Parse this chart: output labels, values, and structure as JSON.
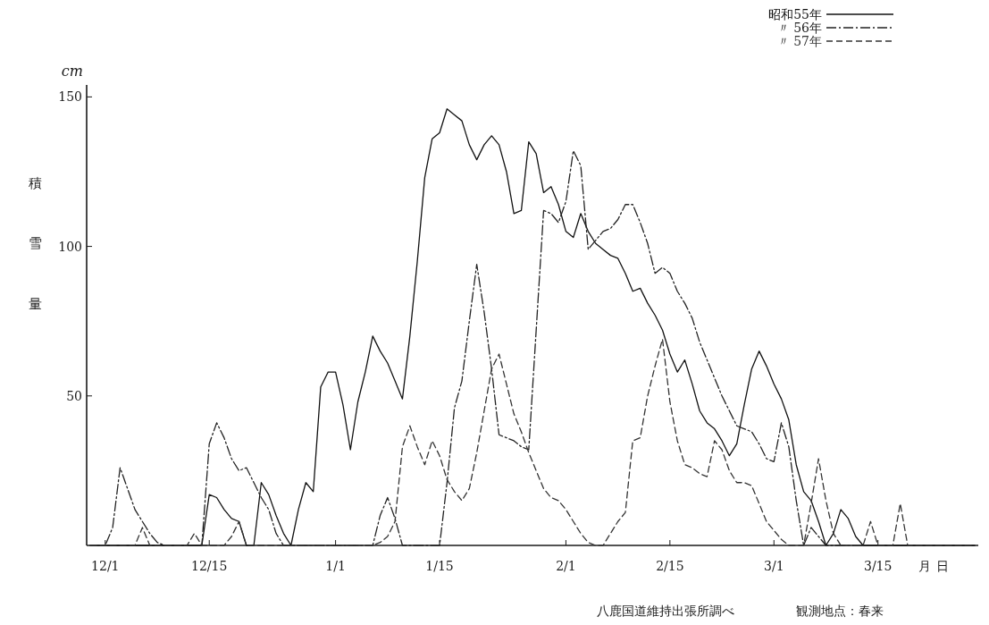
{
  "chart_data": {
    "type": "line",
    "xlabel": "月日",
    "ylabel": "積雪量",
    "annotations": [
      "cm",
      "八鹿国道維持出張所調べ",
      "観測地点：春来"
    ],
    "categories": [
      null,
      null,
      "12/1",
      null,
      null,
      null,
      null,
      null,
      null,
      null,
      null,
      null,
      null,
      null,
      null,
      null,
      "12/15",
      null,
      null,
      null,
      null,
      null,
      null,
      null,
      null,
      null,
      null,
      null,
      null,
      null,
      null,
      null,
      null,
      "1/1",
      null,
      null,
      null,
      null,
      null,
      null,
      null,
      null,
      null,
      null,
      null,
      null,
      null,
      "1/15",
      null,
      null,
      null,
      null,
      null,
      null,
      null,
      null,
      null,
      null,
      null,
      null,
      null,
      null,
      null,
      null,
      "2/1",
      null,
      null,
      null,
      null,
      null,
      null,
      null,
      null,
      null,
      null,
      null,
      null,
      null,
      "2/15",
      null,
      null,
      null,
      null,
      null,
      null,
      null,
      null,
      null,
      null,
      null,
      null,
      null,
      "3/1",
      null,
      null,
      null,
      null,
      null,
      null,
      null,
      null,
      null,
      null,
      null,
      null,
      null,
      "3/15",
      null,
      null,
      null,
      null,
      null,
      null,
      null,
      null,
      null,
      null,
      null,
      null,
      null
    ],
    "ylim": [
      0,
      154
    ],
    "yticks": [
      50,
      100,
      150
    ],
    "legend": "top right",
    "marker": "none",
    "series": [
      {
        "name": "昭和55年",
        "color": "#111111",
        "line_style": "solid",
        "values": [
          0,
          0,
          0,
          0,
          0,
          0,
          0,
          0,
          0,
          0,
          0,
          0,
          0,
          0,
          0,
          0,
          17,
          16,
          12,
          9,
          8,
          0,
          0,
          21,
          17,
          10,
          4,
          0,
          12,
          21,
          18,
          53,
          58,
          58,
          47,
          32,
          48,
          58,
          70,
          65,
          61,
          55,
          49,
          70,
          95,
          123,
          136,
          138,
          146,
          144,
          142,
          134,
          129,
          134,
          137,
          134,
          125,
          111,
          112,
          135,
          131,
          118,
          120,
          114,
          105,
          103,
          111,
          105,
          101,
          99,
          97,
          96,
          91,
          85,
          86,
          81,
          77,
          72,
          64,
          58,
          62,
          54,
          45,
          41,
          39,
          35,
          30,
          34,
          47,
          59,
          65,
          60,
          54,
          49,
          42,
          27,
          18,
          15,
          8,
          0,
          4,
          12,
          9,
          3,
          0,
          0,
          0,
          0,
          0,
          0,
          0,
          0,
          0,
          0,
          0,
          0,
          0,
          0,
          0,
          0
        ]
      },
      {
        "name": "〃 56年",
        "color": "#222222",
        "line_style": "dashdot",
        "values": [
          0,
          0,
          0,
          6,
          26,
          19,
          12,
          8,
          4,
          1,
          0,
          0,
          0,
          0,
          0,
          0,
          34,
          41,
          36,
          29,
          25,
          26,
          21,
          16,
          12,
          4,
          0,
          0,
          0,
          0,
          0,
          0,
          0,
          0,
          0,
          0,
          0,
          0,
          0,
          10,
          16,
          9,
          0,
          0,
          0,
          0,
          0,
          0,
          21,
          46,
          55,
          75,
          94,
          78,
          59,
          37,
          36,
          35,
          33,
          32,
          72,
          112,
          111,
          108,
          115,
          132,
          127,
          99,
          102,
          105,
          106,
          109,
          114,
          114,
          108,
          101,
          91,
          93,
          91,
          85,
          81,
          76,
          68,
          62,
          56,
          50,
          45,
          40,
          39,
          38,
          34,
          29,
          28,
          41,
          33,
          15,
          0,
          6,
          3,
          0,
          0,
          0,
          0,
          0,
          0,
          0,
          0,
          0,
          0,
          0,
          0,
          0,
          0,
          0,
          0,
          0,
          0,
          0,
          0,
          0
        ]
      },
      {
        "name": "〃 57年",
        "color": "#333333",
        "line_style": "dashed",
        "values": [
          0,
          0,
          0,
          0,
          0,
          0,
          0,
          6,
          0,
          0,
          0,
          0,
          0,
          0,
          4,
          0,
          0,
          0,
          0,
          3,
          8,
          0,
          0,
          0,
          0,
          0,
          0,
          0,
          0,
          0,
          0,
          0,
          0,
          0,
          0,
          0,
          0,
          0,
          0,
          1,
          3,
          8,
          33,
          40,
          33,
          27,
          35,
          30,
          22,
          18,
          15,
          19,
          31,
          45,
          59,
          64,
          54,
          44,
          38,
          31,
          25,
          19,
          16,
          15,
          12,
          8,
          4,
          1,
          0,
          0,
          4,
          8,
          11,
          35,
          36,
          50,
          60,
          69,
          48,
          35,
          27,
          26,
          24,
          23,
          35,
          32,
          25,
          21,
          21,
          20,
          14,
          8,
          5,
          2,
          0,
          0,
          0,
          14,
          29,
          15,
          4,
          0,
          0,
          0,
          0,
          8,
          0,
          0,
          0,
          14,
          0,
          0,
          0,
          0,
          0,
          0,
          0,
          0,
          0,
          0
        ]
      }
    ]
  }
}
